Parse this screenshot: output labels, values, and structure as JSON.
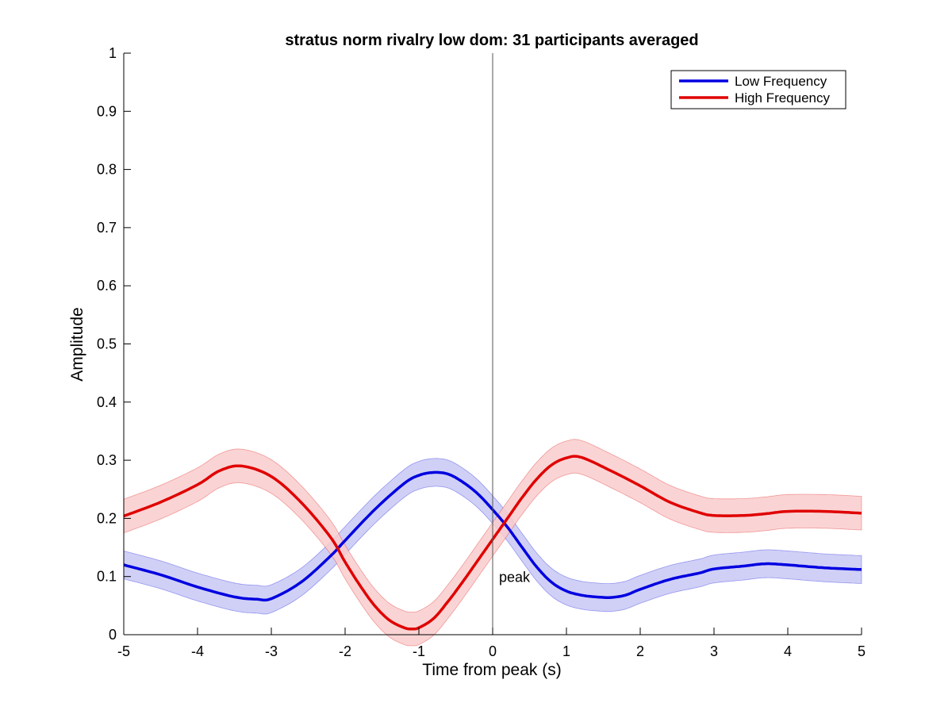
{
  "chart_data": {
    "type": "line",
    "title": "stratus norm rivalry low dom: 31 participants averaged",
    "xlabel": "Time from peak (s)",
    "ylabel": "Amplitude",
    "xlim": [
      -5,
      5
    ],
    "ylim": [
      0,
      1
    ],
    "xticks": [
      -5,
      -4,
      -3,
      -2,
      -1,
      0,
      1,
      2,
      3,
      4,
      5
    ],
    "yticks": [
      0,
      0.1,
      0.2,
      0.3,
      0.4,
      0.5,
      0.6,
      0.7,
      0.8,
      0.9,
      1
    ],
    "grid": false,
    "legend_position": "top-right",
    "vertical_marker": {
      "x": 0,
      "label": "peak"
    },
    "series": [
      {
        "name": "Low Frequency",
        "color": "#0000e0",
        "band_color": "#c8c8f5",
        "x": [
          -5,
          -4.5,
          -4,
          -3.5,
          -3.2,
          -3,
          -2.6,
          -2.2,
          -2,
          -1.6,
          -1.2,
          -1,
          -0.8,
          -0.6,
          -0.4,
          -0.2,
          0,
          0.2,
          0.4,
          0.6,
          0.8,
          1,
          1.2,
          1.4,
          1.6,
          1.8,
          2,
          2.4,
          2.8,
          3,
          3.4,
          3.7,
          4,
          4.5,
          5
        ],
        "y": [
          0.12,
          0.103,
          0.082,
          0.065,
          0.061,
          0.062,
          0.09,
          0.135,
          0.162,
          0.215,
          0.26,
          0.274,
          0.279,
          0.276,
          0.262,
          0.242,
          0.215,
          0.185,
          0.15,
          0.116,
          0.09,
          0.075,
          0.068,
          0.065,
          0.064,
          0.068,
          0.078,
          0.095,
          0.106,
          0.113,
          0.118,
          0.122,
          0.12,
          0.115,
          0.112
        ],
        "error": 0.024
      },
      {
        "name": "High Frequency",
        "color": "#e00000",
        "band_color": "#f9cccc",
        "x": [
          -5,
          -4.5,
          -4,
          -3.7,
          -3.4,
          -3,
          -2.6,
          -2.2,
          -2,
          -1.8,
          -1.6,
          -1.4,
          -1.2,
          -1.1,
          -1,
          -0.8,
          -0.6,
          -0.4,
          -0.2,
          0,
          0.2,
          0.4,
          0.6,
          0.8,
          1,
          1.2,
          1.6,
          2,
          2.4,
          2.8,
          3,
          3.4,
          3.7,
          4,
          4.5,
          5
        ],
        "y": [
          0.204,
          0.228,
          0.258,
          0.282,
          0.29,
          0.272,
          0.228,
          0.168,
          0.125,
          0.085,
          0.05,
          0.025,
          0.012,
          0.01,
          0.012,
          0.028,
          0.058,
          0.092,
          0.128,
          0.164,
          0.2,
          0.236,
          0.268,
          0.292,
          0.304,
          0.305,
          0.282,
          0.256,
          0.228,
          0.21,
          0.205,
          0.205,
          0.208,
          0.212,
          0.212,
          0.209
        ],
        "error": 0.029
      }
    ]
  }
}
